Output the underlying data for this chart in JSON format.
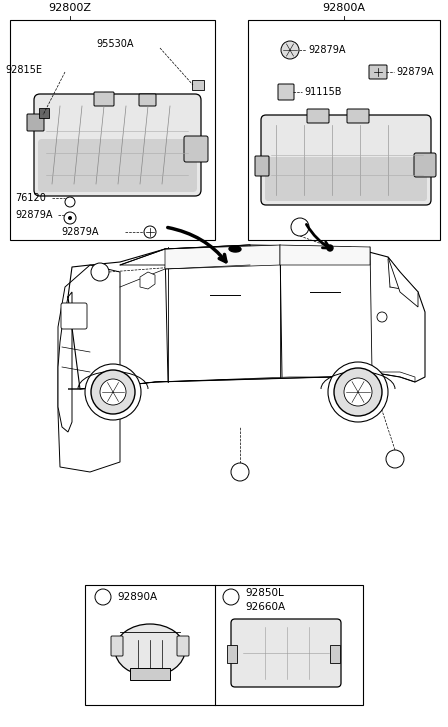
{
  "bg_color": "#ffffff",
  "figsize": [
    4.48,
    7.27
  ],
  "dpi": 100,
  "left_box_label": "92800Z",
  "right_box_label": "92800A",
  "left_parts_labels": [
    "95530A",
    "92815E",
    "76120",
    "92879A",
    "92879A"
  ],
  "right_parts_labels": [
    "92879A",
    "92879A",
    "91115B"
  ],
  "bottom_a_part": "92890A",
  "bottom_b_parts": [
    "92850L",
    "92660A"
  ],
  "text_color": "#000000",
  "line_color": "#000000"
}
